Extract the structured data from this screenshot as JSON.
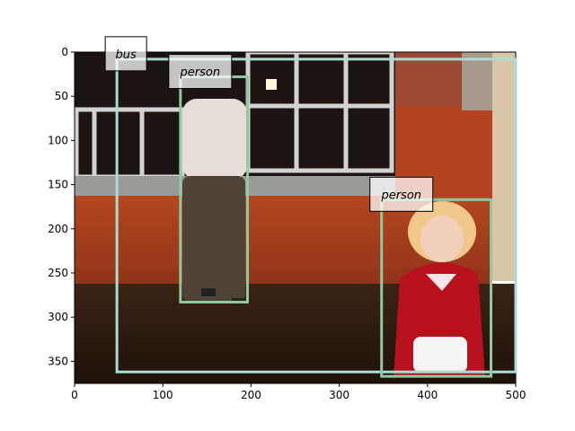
{
  "image": {
    "description_free": true,
    "x_range": [
      0,
      500
    ],
    "y_range": [
      0,
      375
    ]
  },
  "axes": {
    "x_ticks": [
      "0",
      "100",
      "200",
      "300",
      "400",
      "500"
    ],
    "y_ticks": [
      "0",
      "50",
      "100",
      "150",
      "200",
      "250",
      "300",
      "350"
    ]
  },
  "detections": [
    {
      "label": "bus",
      "x1": 48,
      "y1": 8,
      "x2": 500,
      "y2": 362,
      "color": "#a8dcd4"
    },
    {
      "label": "person",
      "x1": 120,
      "y1": 28,
      "x2": 196,
      "y2": 283,
      "color": "#8fc9a0"
    },
    {
      "label": "person",
      "x1": 348,
      "y1": 167,
      "x2": 472,
      "y2": 367,
      "color": "#8fc9a0"
    }
  ],
  "colors": {
    "wall_brick": "#a8401f",
    "floor": "#2c1b10",
    "window_frame": "#cfcfcf",
    "coat": "#b8101c"
  }
}
